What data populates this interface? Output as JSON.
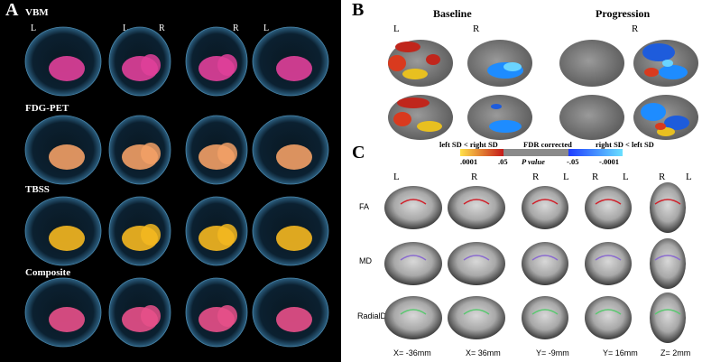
{
  "panel_a": {
    "letter": "A",
    "rows": [
      {
        "label": "VBM",
        "color": "#e0409a",
        "orientations": [
          "L",
          "L R",
          "R",
          "L"
        ]
      },
      {
        "label": "FDG-PET",
        "color": "#f2a066"
      },
      {
        "label": "TBSS",
        "color": "#f5b820"
      },
      {
        "label": "Composite",
        "color": "#e8508a"
      }
    ],
    "view_labels": [
      "L",
      "L",
      "R",
      "R",
      "L"
    ]
  },
  "panel_b": {
    "letter": "B",
    "headers": {
      "baseline": "Baseline",
      "progression": "Progression"
    },
    "hemisphere_labels": [
      "L",
      "R",
      "R"
    ],
    "legend": {
      "left_text": "left SD < right SD",
      "center_text": "FDR corrected",
      "right_text": "right SD < left SD",
      "ticks": [
        ".0001",
        ".05",
        "P value",
        "-.05",
        "-.0001"
      ]
    }
  },
  "panel_c": {
    "letter": "C",
    "top_labels": [
      "L",
      "R",
      "R",
      "L",
      "R",
      "L",
      "R",
      "L"
    ],
    "row_labels": [
      "FA",
      "MD",
      "RadialD"
    ],
    "coords": [
      "X= -36mm",
      "X= 36mm",
      "Y= -9mm",
      "Y= 16mm",
      "Z= 2mm"
    ]
  }
}
